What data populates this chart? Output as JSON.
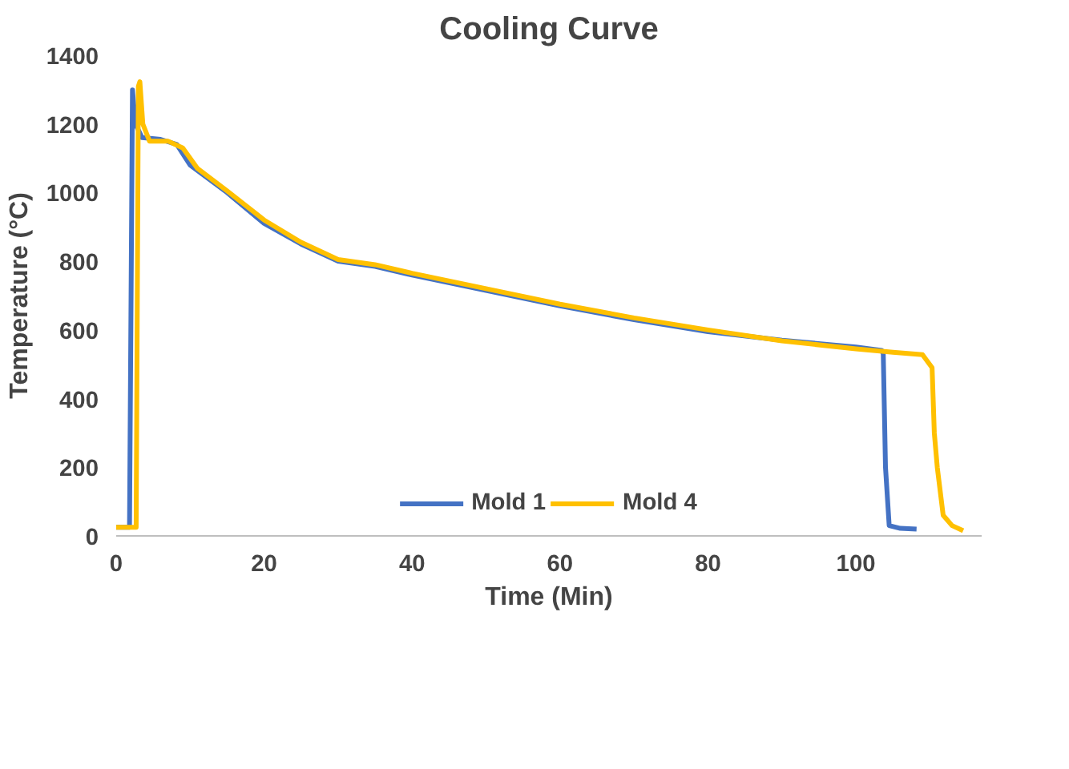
{
  "chart_data": {
    "type": "line",
    "title": "Cooling Curve",
    "xlabel": "Time (Min)",
    "ylabel": "Temperature (°C)",
    "xlim": [
      0,
      117
    ],
    "xticks": [
      0,
      20,
      40,
      60,
      80,
      100
    ],
    "ylim": [
      0,
      1400
    ],
    "yticks": [
      0,
      200,
      400,
      600,
      800,
      1000,
      1200,
      1400
    ],
    "grid": false,
    "legend": "bottom",
    "marker": "none",
    "line_style": "solid",
    "series": [
      {
        "name": "Mold 1",
        "color": "#4472c4",
        "x": [
          0,
          1.8,
          2.2,
          2.6,
          3.5,
          6,
          8.2,
          10,
          15,
          20,
          25,
          30,
          35,
          40,
          50,
          60,
          70,
          80,
          90,
          100,
          103.5,
          103.7,
          104,
          104.5,
          106,
          108.2
        ],
        "values": [
          25,
          25,
          1299,
          1200,
          1160,
          1155,
          1140,
          1080,
          1000,
          910,
          850,
          800,
          785,
          760,
          715,
          670,
          630,
          595,
          570,
          550,
          540,
          530,
          200,
          30,
          22,
          20
        ]
      },
      {
        "name": "Mold 4",
        "color": "#ffc000",
        "x": [
          0,
          2.7,
          3.0,
          3.2,
          3.6,
          4.5,
          7,
          9,
          11,
          15,
          20,
          25,
          30,
          35,
          40,
          50,
          60,
          70,
          80,
          90,
          100,
          105,
          109,
          110.3,
          110.6,
          111,
          111.8,
          113,
          114.5
        ],
        "values": [
          25,
          25,
          1310,
          1323,
          1200,
          1150,
          1150,
          1130,
          1070,
          1005,
          920,
          855,
          805,
          790,
          765,
          720,
          675,
          635,
          600,
          568,
          545,
          535,
          528,
          490,
          300,
          200,
          60,
          30,
          15
        ]
      }
    ]
  }
}
